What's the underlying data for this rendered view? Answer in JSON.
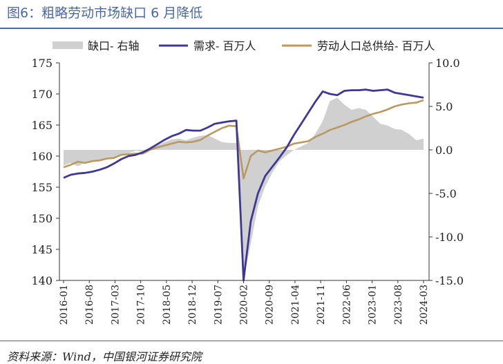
{
  "title": "图6：粗略劳动市场缺口 6 月降低",
  "source": "资料来源：Wind，中国银河证券研究院",
  "chart_data": {
    "type": "line",
    "legend_position": "top",
    "x": [
      "2016-01",
      "2016-03",
      "2016-05",
      "2016-07",
      "2016-09",
      "2016-11",
      "2017-01",
      "2017-03",
      "2017-05",
      "2017-07",
      "2017-09",
      "2017-11",
      "2018-01",
      "2018-03",
      "2018-05",
      "2018-07",
      "2018-09",
      "2018-11",
      "2019-01",
      "2019-03",
      "2019-05",
      "2019-07",
      "2019-09",
      "2019-11",
      "2020-01",
      "2020-03",
      "2020-05",
      "2020-07",
      "2020-09",
      "2020-11",
      "2021-01",
      "2021-03",
      "2021-05",
      "2021-07",
      "2021-09",
      "2021-11",
      "2022-01",
      "2022-03",
      "2022-05",
      "2022-07",
      "2022-09",
      "2022-11",
      "2023-01",
      "2023-03",
      "2023-05",
      "2023-07",
      "2023-09",
      "2023-11",
      "2024-01",
      "2024-03",
      "2024-05"
    ],
    "x_tick_labels": [
      "2016-01",
      "2016-08",
      "2017-03",
      "2017-10",
      "2018-05",
      "2018-12",
      "2019-07",
      "2020-02",
      "2020-09",
      "2021-04",
      "2021-11",
      "2022-06",
      "2023-01",
      "2023-08",
      "2024-03"
    ],
    "y_left": {
      "min": 140,
      "max": 175,
      "ticks": [
        "175",
        "170",
        "165",
        "160",
        "155",
        "150",
        "145",
        "140"
      ]
    },
    "y_right": {
      "min": -15,
      "max": 10,
      "ticks": [
        "10.0",
        "5.0",
        "0.0",
        "-5.0",
        "-10.0",
        "-15.0"
      ]
    },
    "series": [
      {
        "name": "缺口- 右轴",
        "axis": "right",
        "style": "area",
        "color": "#d0d0d0",
        "values": [
          -1.8,
          -1.5,
          -1.9,
          -1.4,
          -1.3,
          -1.3,
          -1.1,
          -0.9,
          -0.6,
          -0.4,
          -0.1,
          -0.2,
          0.2,
          0.5,
          0.9,
          1.2,
          1.3,
          1.1,
          1.4,
          1.6,
          1.7,
          1.3,
          0.9,
          0.8,
          0.8,
          -14.8,
          -10.8,
          -6.5,
          -4.2,
          -2.6,
          -1.3,
          -0.6,
          0.0,
          0.4,
          0.8,
          1.9,
          3.3,
          5.6,
          6.0,
          5.2,
          4.6,
          4.8,
          4.6,
          3.8,
          3.0,
          2.8,
          2.4,
          2.3,
          1.8,
          1.1,
          1.3
        ]
      },
      {
        "name": "需求- 百万人",
        "axis": "left",
        "style": "line",
        "color": "#3f3793",
        "values": [
          156.5,
          157.0,
          157.2,
          157.3,
          157.5,
          157.8,
          158.2,
          158.8,
          159.5,
          160.0,
          160.2,
          160.6,
          161.2,
          161.9,
          162.6,
          163.2,
          163.6,
          164.2,
          164.1,
          164.1,
          164.6,
          165.2,
          165.4,
          165.6,
          165.7,
          140.0,
          149.5,
          154.0,
          156.8,
          158.3,
          159.8,
          161.4,
          163.4,
          165.2,
          167.0,
          168.8,
          170.4,
          170.0,
          169.8,
          170.5,
          170.6,
          170.6,
          170.7,
          170.5,
          170.6,
          170.7,
          170.2,
          170.0,
          169.8,
          169.6,
          169.4
        ]
      },
      {
        "name": "劳动人口总供给- 百万人",
        "axis": "left",
        "style": "line",
        "color": "#b9995f",
        "values": [
          158.2,
          158.6,
          159.1,
          158.9,
          159.2,
          159.3,
          159.6,
          159.7,
          160.2,
          160.3,
          160.4,
          160.4,
          161.0,
          161.4,
          161.7,
          162.0,
          162.3,
          162.2,
          162.3,
          162.6,
          163.3,
          163.9,
          164.5,
          164.9,
          164.8,
          156.4,
          160.0,
          160.9,
          160.6,
          160.9,
          161.2,
          161.5,
          162.0,
          162.2,
          162.4,
          163.1,
          163.6,
          164.2,
          164.6,
          165.0,
          165.5,
          165.9,
          166.4,
          166.8,
          167.1,
          167.5,
          168.0,
          168.3,
          168.5,
          168.6,
          169.0
        ]
      }
    ]
  }
}
